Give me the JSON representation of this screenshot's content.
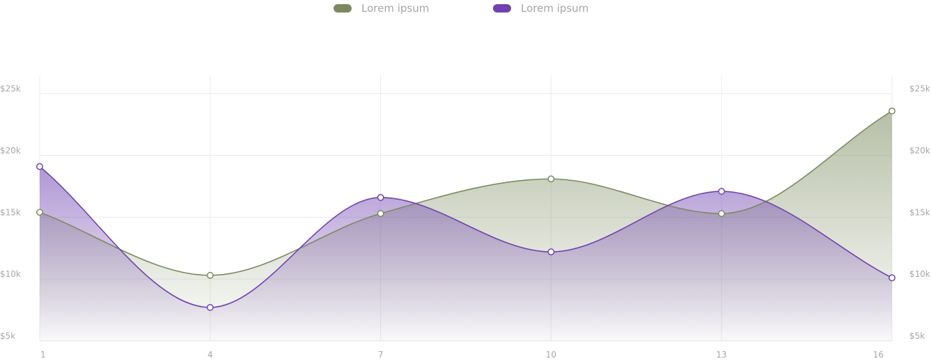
{
  "chart_data": {
    "type": "area",
    "x": [
      1,
      4,
      7,
      10,
      13,
      16
    ],
    "series": [
      {
        "name": "Lorem ipsum",
        "color": "#7b8a5e",
        "values": [
          15400,
          10300,
          15300,
          18100,
          15300,
          23600
        ]
      },
      {
        "name": "Lorem ipsum",
        "color": "#6f42b0",
        "values": [
          19100,
          7700,
          16600,
          12200,
          17100,
          10100
        ]
      }
    ],
    "y_ticks": [
      {
        "value": 5000,
        "label": "$5k"
      },
      {
        "value": 10000,
        "label": "$10k"
      },
      {
        "value": 15000,
        "label": "$15k"
      },
      {
        "value": 20000,
        "label": "$20k"
      },
      {
        "value": 25000,
        "label": "$25k"
      }
    ],
    "x_ticks": [
      "1",
      "4",
      "7",
      "10",
      "13",
      "16"
    ],
    "ylim": [
      5000,
      26500
    ],
    "legend_position": "top-center",
    "grid": true,
    "curve": "smooth",
    "title": "",
    "xlabel": "",
    "ylabel": ""
  }
}
